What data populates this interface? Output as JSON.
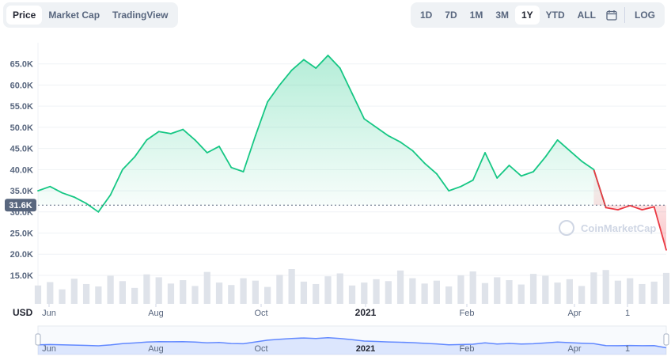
{
  "view_tabs": [
    {
      "label": "Price",
      "active": true
    },
    {
      "label": "Market Cap",
      "active": false
    },
    {
      "label": "TradingView",
      "active": false
    }
  ],
  "ranges": [
    {
      "label": "1D",
      "active": false
    },
    {
      "label": "7D",
      "active": false
    },
    {
      "label": "1M",
      "active": false
    },
    {
      "label": "3M",
      "active": false
    },
    {
      "label": "1Y",
      "active": true
    },
    {
      "label": "YTD",
      "active": false
    },
    {
      "label": "ALL",
      "active": false
    }
  ],
  "calendar_icon": "calendar-icon",
  "log_label": "LOG",
  "watermark": "CoinMarketCap",
  "colors": {
    "up": "#16c784",
    "down": "#ea3943",
    "navigator": "#6188ff",
    "grid": "#eff2f5"
  },
  "chart_data": {
    "type": "area",
    "title": "",
    "ylabel": "USD",
    "ylim": [
      12000,
      70000
    ],
    "yticks": [
      "15.0K",
      "20.0K",
      "25.0K",
      "30.0K",
      "35.0K",
      "40.0K",
      "45.0K",
      "50.0K",
      "55.0K",
      "60.0K",
      "65.0K"
    ],
    "x_labels": [
      "Jun",
      "Aug",
      "Oct",
      "2021",
      "Feb",
      "Apr",
      "1"
    ],
    "baseline_value": 31600,
    "baseline_label": "31.6K",
    "x": [
      "2020-05-21",
      "2020-05-28",
      "2020-06-04",
      "2020-06-11",
      "2020-06-18",
      "2020-06-25",
      "2020-07-02",
      "2020-07-09",
      "2020-07-16",
      "2020-07-23",
      "2020-07-30",
      "2020-08-06",
      "2020-08-13",
      "2020-08-20",
      "2020-08-27",
      "2020-09-03",
      "2020-09-10",
      "2020-09-17",
      "2020-09-24",
      "2020-10-01",
      "2020-10-08",
      "2020-10-15",
      "2020-10-22",
      "2020-10-29",
      "2020-11-05",
      "2020-11-12",
      "2020-11-19",
      "2020-11-26",
      "2020-12-03",
      "2020-12-10",
      "2020-12-17",
      "2020-12-24",
      "2020-12-31",
      "2021-01-07",
      "2021-01-14",
      "2021-01-21",
      "2021-01-28",
      "2021-02-04",
      "2021-02-11",
      "2021-02-18",
      "2021-02-25",
      "2021-03-04",
      "2021-03-11",
      "2021-03-18",
      "2021-03-25",
      "2021-04-01",
      "2021-04-08",
      "2021-04-15",
      "2021-04-22",
      "2021-04-29",
      "2021-05-06",
      "2021-05-13",
      "2021-05-20"
    ],
    "values": [
      35000,
      36000,
      34500,
      33500,
      32000,
      30000,
      34000,
      40000,
      43000,
      47000,
      49000,
      48500,
      49500,
      47000,
      44000,
      45500,
      40500,
      39500,
      48000,
      56000,
      60000,
      63500,
      66000,
      64000,
      67000,
      64000,
      58000,
      52000,
      50000,
      48000,
      46500,
      44500,
      41500,
      39000,
      35000,
      36000,
      37500,
      44000,
      38000,
      41000,
      38500,
      39500,
      43000,
      47000,
      44500,
      42000,
      40000,
      31000,
      30500,
      31500,
      30500,
      31200,
      21000
    ],
    "down_from_index": 47,
    "volume": [
      38,
      45,
      30,
      52,
      41,
      36,
      58,
      47,
      33,
      61,
      55,
      42,
      49,
      37,
      66,
      44,
      39,
      53,
      48,
      35,
      60,
      72,
      46,
      41,
      57,
      63,
      38,
      44,
      51,
      47,
      69,
      53,
      42,
      48,
      36,
      59,
      67,
      43,
      55,
      49,
      40,
      62,
      58,
      44,
      51,
      37,
      65,
      70,
      48,
      53,
      41,
      46,
      64
    ],
    "series": [
      {
        "name": "Price",
        "values_ref": "values"
      }
    ]
  }
}
